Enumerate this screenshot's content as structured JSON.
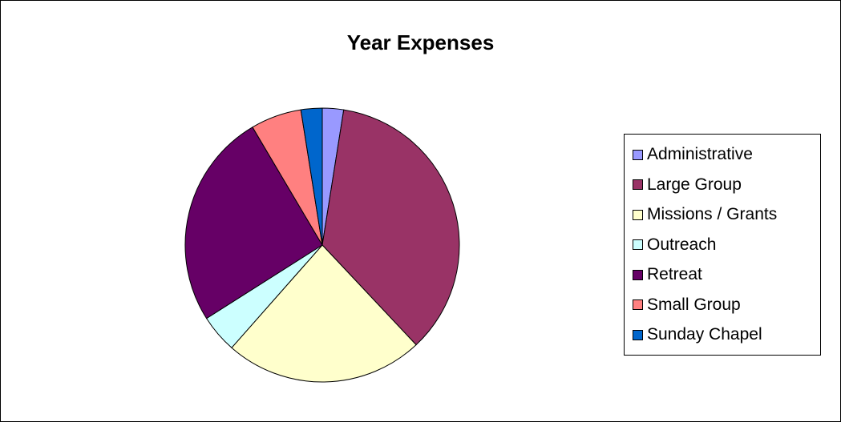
{
  "chart_data": {
    "type": "pie",
    "title": "Year Expenses",
    "legend_position": "right",
    "slices": [
      {
        "label": "Administrative",
        "value": 2.5,
        "color": "#9999FF"
      },
      {
        "label": "Large Group",
        "value": 35.5,
        "color": "#993366"
      },
      {
        "label": "Missions / Grants",
        "value": 23.5,
        "color": "#FFFFCC"
      },
      {
        "label": "Outreach",
        "value": 4.5,
        "color": "#CCFFFF"
      },
      {
        "label": "Retreat",
        "value": 25.5,
        "color": "#660066"
      },
      {
        "label": "Small Group",
        "value": 6.0,
        "color": "#FF8080"
      },
      {
        "label": "Sunday Chapel",
        "value": 2.5,
        "color": "#0066CC"
      }
    ]
  }
}
